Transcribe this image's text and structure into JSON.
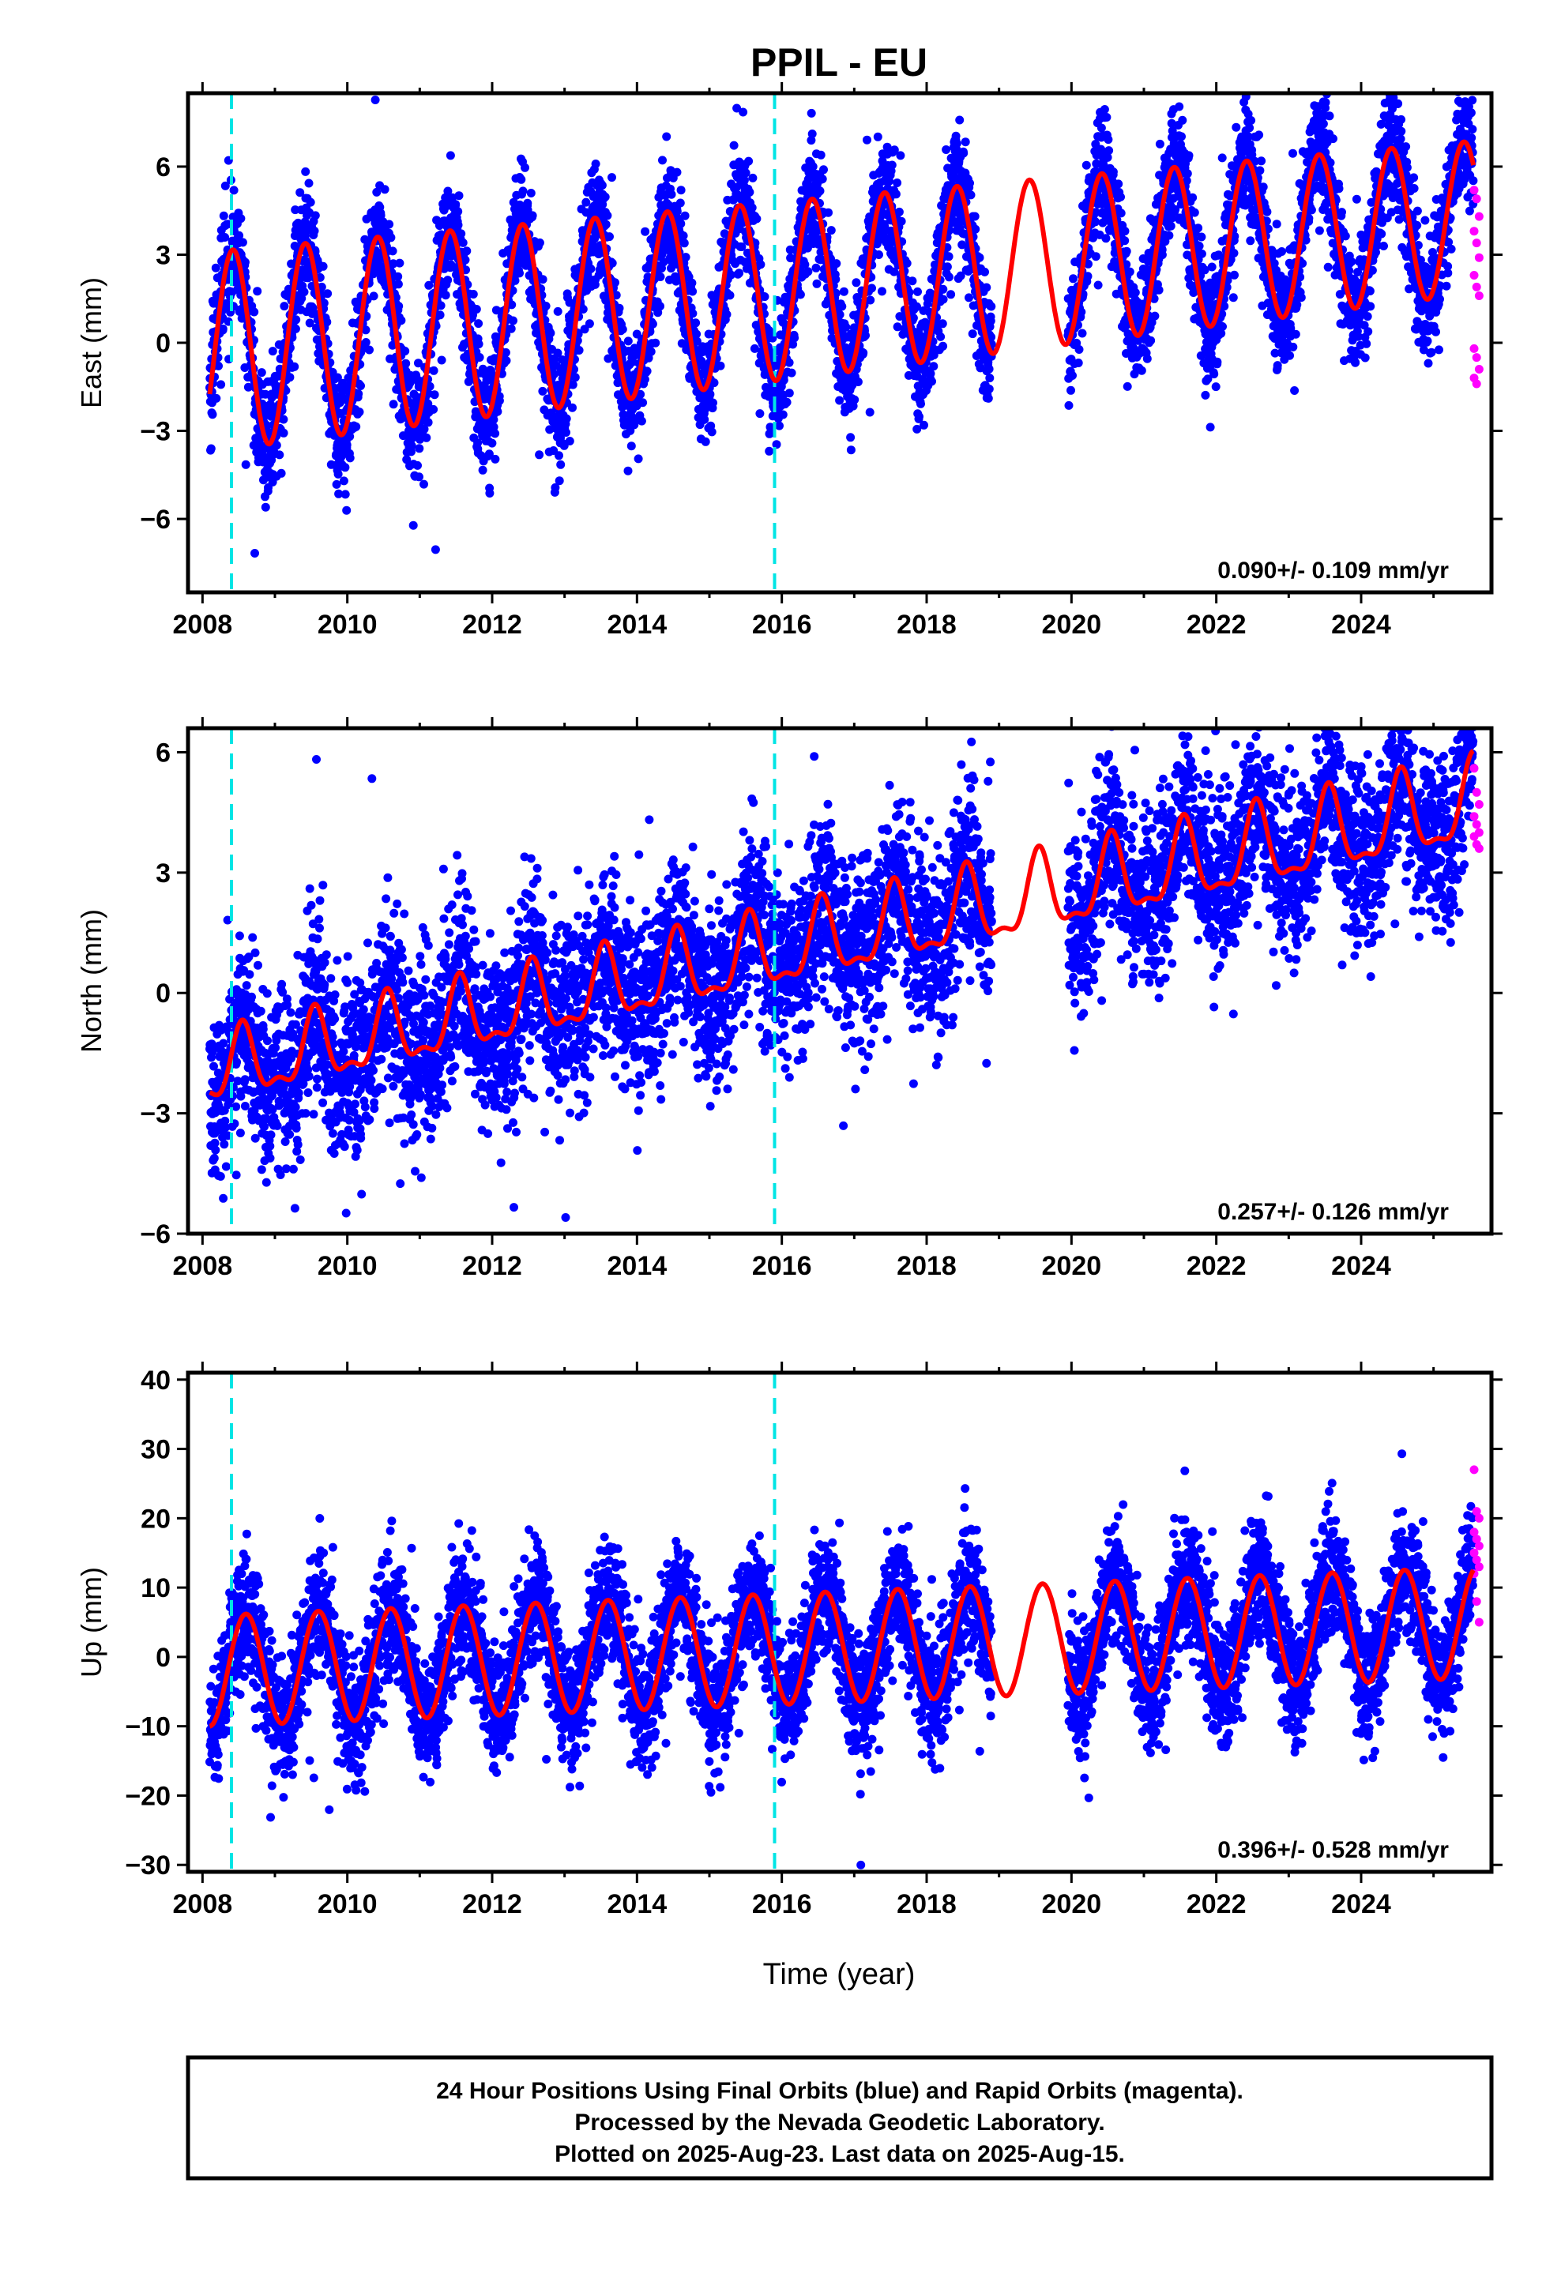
{
  "title": "PPIL - EU",
  "colors": {
    "final_orbits": "#0000ff",
    "rapid_orbits": "#ff00ff",
    "model": "#ff0000",
    "events": "#00e5e5",
    "frame": "#000000"
  },
  "chart_data": [
    {
      "type": "scatter",
      "ylabel": "East (mm)",
      "xlim": [
        2007.8,
        2025.8
      ],
      "ylim": [
        -8.5,
        8.5
      ],
      "yticks": [
        -6,
        -3,
        0,
        3,
        6
      ],
      "xticks": [
        2008,
        2010,
        2012,
        2014,
        2016,
        2018,
        2020,
        2022,
        2024
      ],
      "xtick_labels": [
        "2008",
        "2010",
        "2012",
        "2014",
        "2016",
        "2018",
        "2020",
        "2022",
        "2024"
      ],
      "event_lines": [
        2008.4,
        2015.9
      ],
      "rate_text": "0.090+/- 0.109 mm/yr",
      "model": {
        "rate": 0.09,
        "offset": -0.3,
        "annual_amp_start": 3.4,
        "annual_amp_end": 2.6,
        "mean_drift": 3.0,
        "phase_peak": 0.42,
        "semiannual_amp": 0.0
      },
      "noise": 1.0,
      "final_range": [
        2008.1,
        2025.55
      ],
      "gap": [
        2018.9,
        2019.95
      ],
      "rapid": {
        "x_range": [
          2025.56,
          2025.63
        ],
        "values": [
          5.2,
          4.9,
          4.3,
          3.8,
          3.4,
          2.9,
          2.3,
          1.9,
          1.6,
          -0.2,
          -0.5,
          -0.9,
          -1.2,
          -1.4
        ]
      }
    },
    {
      "type": "scatter",
      "ylabel": "North (mm)",
      "xlim": [
        2007.8,
        2025.8
      ],
      "ylim": [
        -6.0,
        6.6
      ],
      "yticks": [
        -6,
        -3,
        0,
        3,
        6
      ],
      "xticks": [
        2008,
        2010,
        2012,
        2014,
        2016,
        2018,
        2020,
        2022,
        2024
      ],
      "xtick_labels": [
        "2008",
        "2010",
        "2012",
        "2014",
        "2016",
        "2018",
        "2020",
        "2022",
        "2024"
      ],
      "event_lines": [
        2008.4,
        2015.9
      ],
      "rate_text": "0.257+/- 0.126 mm/yr",
      "model": {
        "rate": 0.257,
        "offset": -2.0,
        "annual_amp_start": 0.8,
        "annual_amp_end": 1.0,
        "mean_drift": 2.2,
        "phase_peak": 0.55,
        "semiannual_amp": 0.35
      },
      "noise": 1.1,
      "final_range": [
        2008.1,
        2025.55
      ],
      "gap": [
        2018.9,
        2019.95
      ],
      "rapid": {
        "x_range": [
          2025.56,
          2025.63
        ],
        "values": [
          5.6,
          5.0,
          4.7,
          4.4,
          4.2,
          4.0,
          3.9,
          3.7,
          3.6
        ]
      }
    },
    {
      "type": "scatter",
      "ylabel": "Up (mm)",
      "xlim": [
        2007.8,
        2025.8
      ],
      "ylim": [
        -31,
        41
      ],
      "yticks": [
        -30,
        -20,
        -10,
        0,
        10,
        20,
        30,
        40
      ],
      "xticks": [
        2008,
        2010,
        2012,
        2014,
        2016,
        2018,
        2020,
        2022,
        2024
      ],
      "xtick_labels": [
        "2008",
        "2010",
        "2012",
        "2014",
        "2016",
        "2018",
        "2020",
        "2022",
        "2024"
      ],
      "event_lines": [
        2008.4,
        2015.9
      ],
      "rate_text": "0.396+/- 0.528 mm/yr",
      "xlabel": "Time (year)",
      "model": {
        "rate": 0.396,
        "offset": -2.0,
        "annual_amp_start": 8.0,
        "annual_amp_end": 8.0,
        "mean_drift": 0.0,
        "phase_peak": 0.6,
        "semiannual_amp": 0.0
      },
      "noise": 4.5,
      "final_range": [
        2008.1,
        2025.55
      ],
      "gap": [
        2018.9,
        2019.95
      ],
      "rapid": {
        "x_range": [
          2025.56,
          2025.63
        ],
        "values": [
          27,
          21,
          20,
          18,
          17,
          16,
          15,
          14,
          13,
          12,
          8,
          5
        ]
      }
    }
  ],
  "footer": {
    "line1": "24 Hour Positions Using Final Orbits (blue) and Rapid Orbits (magenta).",
    "line2": "Processed by the Nevada Geodetic Laboratory.",
    "line3": "Plotted on 2025-Aug-23. Last data on 2025-Aug-15."
  }
}
